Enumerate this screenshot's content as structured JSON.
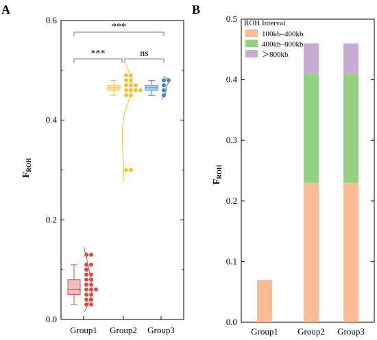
{
  "panel_a": {
    "letter": "A",
    "ylabel_main": "F",
    "ylabel_sub": "ROH",
    "significance": [
      {
        "from": "Group1",
        "to": "Group3",
        "label": "***"
      },
      {
        "from": "Group1",
        "to": "Group2",
        "label": "***"
      },
      {
        "from": "Group2",
        "to": "Group3",
        "label": "ns"
      }
    ]
  },
  "panel_b": {
    "letter": "B",
    "ylabel_main": "F",
    "ylabel_sub": "ROH",
    "legend_title": "ROH Interval"
  },
  "chart_data": [
    {
      "type": "box",
      "panel": "A",
      "categories": [
        "Group1",
        "Group2",
        "Group3"
      ],
      "ylabel": "FROH",
      "ylim": [
        0,
        0.6
      ],
      "yticks": [
        0.0,
        0.2,
        0.4,
        0.6
      ],
      "ytick_labels": [
        "0.0",
        "0.2",
        "0.4",
        "0.6"
      ],
      "colors": {
        "Group1": "#e04a3f",
        "Group2": "#f2c12e",
        "Group3": "#3f7fe0"
      },
      "boxes": [
        {
          "group": "Group1",
          "min": 0.03,
          "q1": 0.05,
          "median": 0.06,
          "q3": 0.08,
          "max": 0.11
        },
        {
          "group": "Group2",
          "min": 0.45,
          "q1": 0.46,
          "median": 0.465,
          "q3": 0.47,
          "max": 0.48
        },
        {
          "group": "Group3",
          "min": 0.45,
          "q1": 0.46,
          "median": 0.465,
          "q3": 0.47,
          "max": 0.48
        }
      ],
      "points": [
        {
          "group": "Group1",
          "values": [
            0.13,
            0.13,
            0.11,
            0.11,
            0.1,
            0.09,
            0.09,
            0.08,
            0.08,
            0.07,
            0.07,
            0.06,
            0.06,
            0.06,
            0.05,
            0.05,
            0.04,
            0.04,
            0.03,
            0.03
          ]
        },
        {
          "group": "Group2",
          "values": [
            0.49,
            0.49,
            0.48,
            0.48,
            0.47,
            0.47,
            0.47,
            0.46,
            0.46,
            0.46,
            0.46,
            0.45,
            0.45,
            0.3,
            0.3
          ]
        },
        {
          "group": "Group3",
          "values": [
            0.48,
            0.48,
            0.47,
            0.46,
            0.45
          ]
        }
      ]
    },
    {
      "type": "bar",
      "stacked": true,
      "panel": "B",
      "categories": [
        "Group1",
        "Group2",
        "Group3"
      ],
      "ylabel": "FROH",
      "ylim": [
        0,
        0.5
      ],
      "yticks": [
        0.0,
        0.1,
        0.2,
        0.3,
        0.4,
        0.5
      ],
      "ytick_labels": [
        "0.0",
        "0.1",
        "0.2",
        "0.3",
        "0.4",
        "0.5"
      ],
      "legend_title": "ROH Interval",
      "legend_position": "top-left",
      "series": [
        {
          "name": "100kb–400kb",
          "color": "#f9bc93",
          "values": [
            0.07,
            0.23,
            0.23
          ]
        },
        {
          "name": "400kb–800kb",
          "color": "#93d27f",
          "values": [
            0,
            0.18,
            0.18
          ]
        },
        {
          "name": "＞800kb",
          "color": "#c6acd3",
          "values": [
            0,
            0.05,
            0.05
          ]
        }
      ]
    }
  ]
}
